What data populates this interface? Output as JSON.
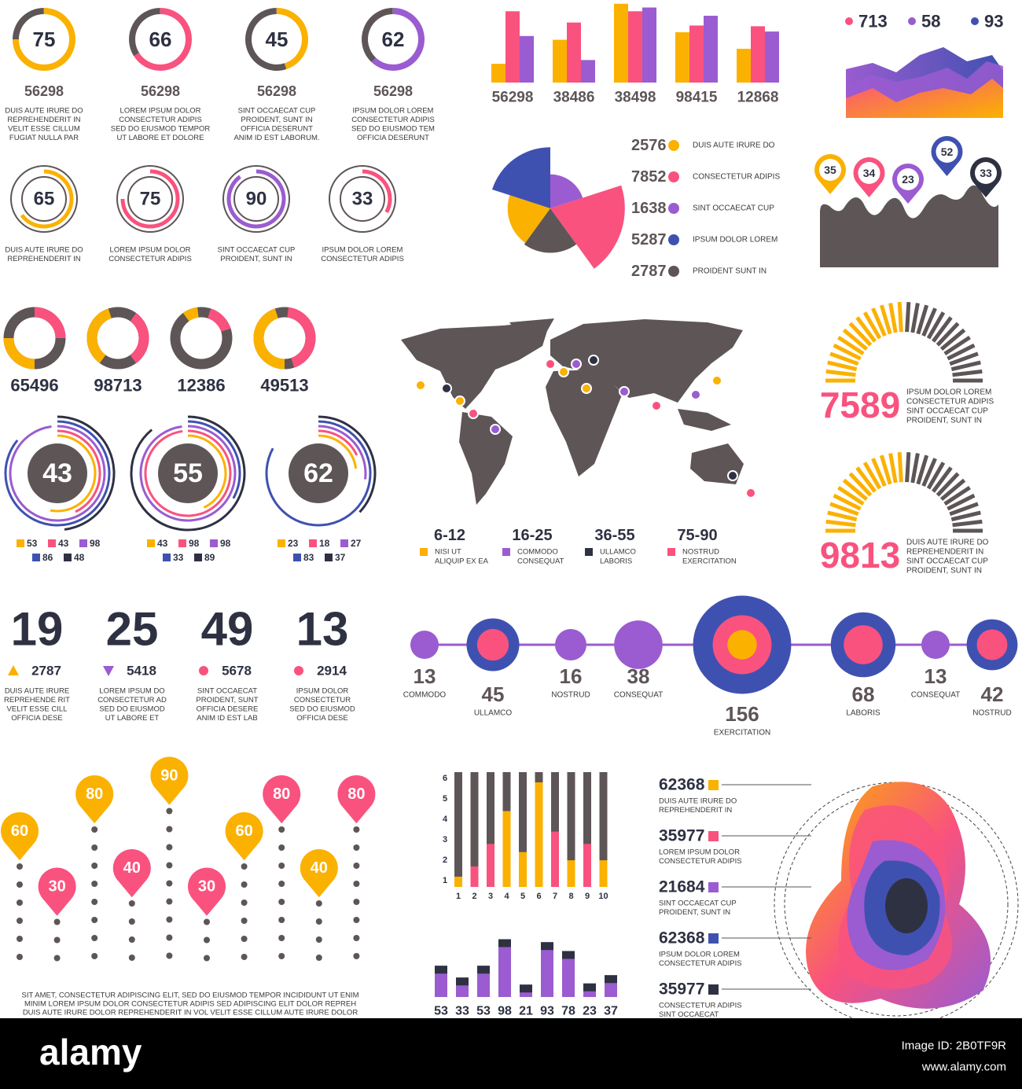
{
  "rings_top": [
    {
      "value": 75,
      "color": "#fbb100",
      "number": 56298,
      "lines": [
        "DUIS AUTE IRURE DO",
        "REPREHENDERIT IN",
        "VELIT ESSE CILLUM",
        "FUGIAT NULLA PAR"
      ]
    },
    {
      "value": 66,
      "color": "#f9527e",
      "number": 56298,
      "lines": [
        "LOREM IPSUM DOLOR",
        "CONSECTETUR ADIPIS",
        "SED DO EIUSMOD TEMPOR",
        "UT LABORE ET DOLORE"
      ]
    },
    {
      "value": 45,
      "color": "#fbb100",
      "number": 56298,
      "lines": [
        "SINT OCCAECAT CUP",
        "PROIDENT, SUNT IN",
        "OFFICIA DESERUNT",
        "ANIM ID EST LABORUM."
      ]
    },
    {
      "value": 62,
      "color": "#9a5cd0",
      "number": 56298,
      "lines": [
        "IPSUM DOLOR LOREM",
        "CONSECTETUR ADIPIS",
        "SED DO EIUSMOD TEM",
        "OFFICIA DESERUNT"
      ]
    }
  ],
  "rings_mid": [
    {
      "value": 65,
      "color": "#fbb100",
      "lines": [
        "DUIS AUTE IRURE DO",
        "REPREHENDERIT IN"
      ]
    },
    {
      "value": 75,
      "color": "#f9527e",
      "lines": [
        "LOREM IPSUM DOLOR",
        "CONSECTETUR ADIPIS"
      ]
    },
    {
      "value": 90,
      "color": "#9a5cd0",
      "lines": [
        "SINT OCCAECAT CUP",
        "PROIDENT, SUNT IN"
      ]
    },
    {
      "value": 33,
      "color": "#f9527e",
      "lines": [
        "IPSUM DOLOR LOREM",
        "CONSECTETUR ADIPIS"
      ]
    }
  ],
  "donuts": [
    65496,
    98713,
    12386,
    49513
  ],
  "multi_rings": {
    "colors": [
      "#fbb100",
      "#f9527e",
      "#9a5cd0",
      "#3f51b0",
      "#2e3142"
    ],
    "items": [
      {
        "value": 43,
        "legend": [
          53,
          43,
          98,
          86,
          48
        ]
      },
      {
        "value": 55,
        "legend": [
          43,
          98,
          98,
          33,
          89
        ]
      },
      {
        "value": 62,
        "legend": [
          23,
          18,
          27,
          83,
          37
        ]
      }
    ]
  },
  "big_stats": [
    {
      "value": 19,
      "marker": "triangle-up",
      "marker_color": "#fbb100",
      "number": 2787,
      "lines": [
        "DUIS AUTE IRURE",
        "REPREHENDE RIT",
        "VELIT ESSE CILL",
        "OFFICIA DESE"
      ]
    },
    {
      "value": 25,
      "marker": "triangle-down",
      "marker_color": "#9a5cd0",
      "number": 5418,
      "lines": [
        "LOREM IPSUM DO",
        "CONSECTETUR AD",
        "SED DO EIUSMOD",
        "UT LABORE ET"
      ]
    },
    {
      "value": 49,
      "marker": "circle",
      "marker_color": "#f9527e",
      "number": 5678,
      "lines": [
        "SINT OCCAECAT",
        "PROIDENT, SUNT",
        "OFFICIA DESERE",
        "ANIM ID EST LAB"
      ]
    },
    {
      "value": 13,
      "marker": "circle",
      "marker_color": "#f9527e",
      "number": 2914,
      "lines": [
        "IPSUM DOLOR",
        "CONSECTETUR",
        "SED DO EIUSMOD",
        "OFFICIA DESE"
      ]
    }
  ],
  "pin_columns": {
    "values": [
      60,
      30,
      80,
      40,
      90,
      30,
      60,
      80,
      40,
      80
    ],
    "colors": [
      "#fbb100",
      "#f9527e",
      "#fbb100",
      "#f9527e",
      "#fbb100",
      "#f9527e",
      "#fbb100",
      "#f9527e",
      "#fbb100",
      "#f9527e"
    ],
    "text": [
      "SIT AMET, CONSECTETUR ADIPISCING ELIT,  SED DO EIUSMOD TEMPOR INCIDIDUNT UT ENIM",
      "MINIM LOREM IPSUM DOLOR  CONSECTETUR ADIPIS SED ADIPISCING ELIT DOLOR REPREH",
      "DUIS AUTE IRURE DOLOR REPREHENDERIT IN VOL VELIT ESSE CILLUM AUTE IRURE DOLOR"
    ]
  },
  "grouped_bars": {
    "categories": [
      56298,
      38486,
      38498,
      98415,
      12868
    ],
    "series": [
      {
        "color": "#fbb100",
        "values": [
          25,
          57,
          105,
          67,
          45
        ]
      },
      {
        "color": "#f9527e",
        "values": [
          95,
          80,
          95,
          76,
          75
        ]
      },
      {
        "color": "#9a5cd0",
        "values": [
          62,
          30,
          100,
          89,
          68
        ]
      }
    ],
    "ylim": [
      0,
      110
    ]
  },
  "area_legend": [
    {
      "value": 713,
      "color": "#f9527e"
    },
    {
      "value": 58,
      "color": "#9a5cd0"
    },
    {
      "value": 93,
      "color": "#3f51b0"
    }
  ],
  "rose": [
    {
      "value": 2576,
      "label": "DUIS AUTE IRURE DO",
      "color": "#fbb100"
    },
    {
      "value": 7852,
      "label": "CONSECTETUR ADIPIS",
      "color": "#f9527e"
    },
    {
      "value": 1638,
      "label": "SINT OCCAECAT CUP",
      "color": "#9a5cd0"
    },
    {
      "value": 5287,
      "label": "IPSUM DOLOR LOREM",
      "color": "#3f51b0"
    },
    {
      "value": 2787,
      "label": "PROIDENT SUNT IN",
      "color": "#5e5557"
    }
  ],
  "pins_wave": [
    {
      "value": 35,
      "color": "#fbb100"
    },
    {
      "value": 34,
      "color": "#f9527e"
    },
    {
      "value": 23,
      "color": "#9a5cd0"
    },
    {
      "value": 52,
      "color": "#3f51b0"
    },
    {
      "value": 33,
      "color": "#2e3142"
    }
  ],
  "map_legend": [
    {
      "range": "6-12",
      "color": "#fbb100",
      "lines": [
        "NISI UT",
        "ALIQUIP EX EA"
      ]
    },
    {
      "range": "16-25",
      "color": "#9a5cd0",
      "lines": [
        "COMMODO",
        "CONSEQUAT"
      ]
    },
    {
      "range": "36-55",
      "color": "#2e3142",
      "lines": [
        "ULLAMCO",
        "LABORIS"
      ]
    },
    {
      "range": "75-90",
      "color": "#f9527e",
      "lines": [
        "NOSTRUD",
        "EXERCITATION"
      ]
    }
  ],
  "half_gauges": [
    {
      "value": 7589,
      "lines": [
        "IPSUM DOLOR LOREM",
        "CONSECTETUR ADIPIS",
        "SINT OCCAECAT CUP",
        "PROIDENT, SUNT IN"
      ]
    },
    {
      "value": 9813,
      "lines": [
        "DUIS AUTE IRURE DO",
        "REPREHENDERIT IN",
        "SINT OCCAECAT CUP",
        "PROIDENT, SUNT IN"
      ]
    }
  ],
  "timeline": {
    "colors": {
      "small": "#9a5cd0",
      "outer": "#3f51b0",
      "inner": "#f9527e",
      "core": "#fbb100"
    },
    "items": [
      {
        "value": 13,
        "label": "COMMODO"
      },
      {
        "value": 45,
        "label": "ULLAMCO"
      },
      {
        "value": 16,
        "label": "NOSTRUD"
      },
      {
        "value": 38,
        "label": "CONSEQUAT"
      },
      {
        "value": 156,
        "label": "EXERCITATION"
      },
      {
        "value": 68,
        "label": "LABORIS"
      },
      {
        "value": 13,
        "label": "CONSEQUAT"
      },
      {
        "value": 42,
        "label": "NOSTRUD"
      }
    ]
  },
  "stacked_columns": {
    "categories": [
      1,
      2,
      3,
      4,
      5,
      6,
      7,
      8,
      9,
      10
    ],
    "values": [
      1.2,
      1.7,
      2.8,
      4.4,
      2.4,
      5.8,
      3.4,
      2.0,
      2.8,
      2.0
    ],
    "colors": [
      "#fbb100",
      "#f9527e",
      "#f9527e",
      "#fbb100",
      "#fbb100",
      "#fbb100",
      "#f9527e",
      "#fbb100",
      "#f9527e",
      "#fbb100"
    ],
    "rest_color": "#5e5557",
    "ylim": [
      0.7,
      6.3
    ],
    "yticks": [
      1,
      2,
      3,
      4,
      5,
      6
    ]
  },
  "mini_bars": {
    "values": [
      53,
      33,
      53,
      98,
      21,
      93,
      78,
      23,
      37
    ],
    "color": "#9a5cd0",
    "cap_color": "#2e3142"
  },
  "blob_legend": [
    {
      "value": 62368,
      "color": "#fbb100",
      "lines": [
        "DUIS AUTE IRURE DO",
        "REPREHENDERIT IN"
      ]
    },
    {
      "value": 35977,
      "color": "#f9527e",
      "lines": [
        "LOREM IPSUM DOLOR",
        "CONSECTETUR ADIPIS"
      ]
    },
    {
      "value": 21684,
      "color": "#9a5cd0",
      "lines": [
        "SINT OCCAECAT CUP",
        "PROIDENT, SUNT IN"
      ]
    },
    {
      "value": 62368,
      "color": "#3f51b0",
      "lines": [
        "IPSUM DOLOR LOREM",
        "CONSECTETUR ADIPIS"
      ]
    },
    {
      "value": 35977,
      "color": "#2e3142",
      "lines": [
        "CONSECTETUR ADIPIS",
        "SINT OCCAECAT"
      ]
    }
  ],
  "footer": {
    "brand": "alamy",
    "image_id": "Image ID: 2B0TF9R",
    "url": "www.alamy.com"
  }
}
